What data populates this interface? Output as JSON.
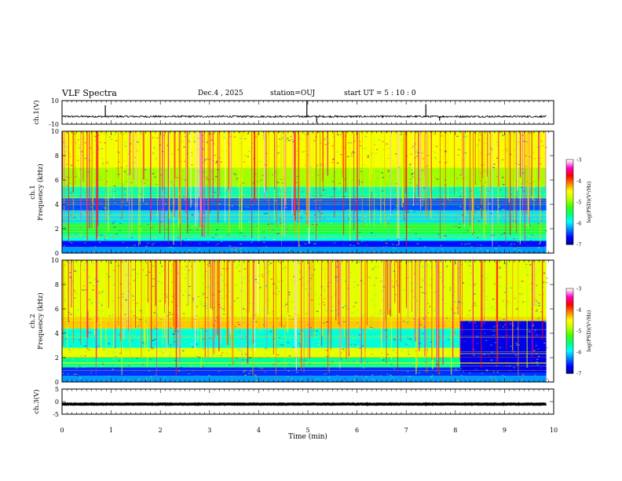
{
  "header": {
    "title": "VLF Spectra",
    "date": "Dec.4 , 2025",
    "station": "station=OUJ",
    "start": "start UT =  5 : 10 : 0"
  },
  "colorbar": {
    "label": "log(PSD)(V²/Hz)",
    "ticks": [
      "-3",
      "-4",
      "-5",
      "-6",
      "-7"
    ],
    "colors": [
      "#000080",
      "#0000ff",
      "#0080ff",
      "#00ffff",
      "#00ff80",
      "#40ff00",
      "#c0ff00",
      "#ffff00",
      "#ff8000",
      "#ff0000",
      "#ff00c0",
      "#ffffff"
    ]
  },
  "chart_data": [
    {
      "type": "line",
      "panel": "waveform",
      "ylabel": "ch.1(V)",
      "ylim": [
        -10,
        10
      ],
      "yticks": [
        "10",
        "-10"
      ],
      "baseline": -3.5,
      "noise_amplitude": 0.8,
      "spikes": [
        {
          "x": 0.88,
          "y": 6
        },
        {
          "x": 4.98,
          "y": 10
        },
        {
          "x": 5.18,
          "y": -9
        },
        {
          "x": 7.4,
          "y": 7
        },
        {
          "x": 7.68,
          "y": -7
        }
      ]
    },
    {
      "type": "heatmap",
      "panel": "spectrogram",
      "ylabel": "ch.1 Frequency (kHz)",
      "ylim": [
        0,
        10
      ],
      "yticks": [
        "10",
        "8",
        "6",
        "4",
        "2",
        "0"
      ],
      "xlim": [
        0,
        9.85
      ],
      "zlim": [
        -7,
        -3
      ],
      "bands": [
        {
          "f_low": 0.5,
          "f_high": 1.0,
          "level": -6.6
        },
        {
          "f_low": 1.0,
          "f_high": 1.5,
          "level": -5.8
        },
        {
          "f_low": 1.5,
          "f_high": 2.5,
          "level": -5.4
        },
        {
          "f_low": 2.5,
          "f_high": 3.5,
          "level": -6.0
        },
        {
          "f_low": 3.5,
          "f_high": 4.5,
          "level": -6.4
        },
        {
          "f_low": 4.5,
          "f_high": 5.5,
          "level": -5.7
        },
        {
          "f_low": 5.5,
          "f_high": 7.0,
          "level": -4.9
        },
        {
          "f_low": 7.0,
          "f_high": 10.0,
          "level": -4.5
        }
      ],
      "spheric_density": 1.0
    },
    {
      "type": "heatmap",
      "panel": "spectrogram",
      "ylabel": "ch.2 Frequency (kHz)",
      "ylim": [
        0,
        10
      ],
      "yticks": [
        "10",
        "8",
        "6",
        "4",
        "2",
        "0"
      ],
      "xlim": [
        0,
        9.85
      ],
      "zlim": [
        -7,
        -3
      ],
      "bands": [
        {
          "f_low": 0.5,
          "f_high": 1.2,
          "level": -6.5
        },
        {
          "f_low": 1.2,
          "f_high": 2.0,
          "level": -5.6
        },
        {
          "f_low": 2.0,
          "f_high": 2.8,
          "level": -4.6
        },
        {
          "f_low": 2.8,
          "f_high": 4.4,
          "level": -5.8
        },
        {
          "f_low": 4.4,
          "f_high": 5.2,
          "level": -4.3
        },
        {
          "f_low": 5.2,
          "f_high": 10.0,
          "level": -4.6
        }
      ],
      "quiet_after_x": 8.1,
      "spheric_density": 1.0
    },
    {
      "type": "line",
      "panel": "waveform",
      "ylabel": "ch.3(V)",
      "ylim": [
        -5,
        5
      ],
      "yticks": [
        "5",
        "0",
        "-5"
      ],
      "baseline": -1.0,
      "noise_amplitude": 0.1
    }
  ],
  "xaxis": {
    "label": "Time (min)",
    "ticks": [
      "0",
      "1",
      "2",
      "3",
      "4",
      "5",
      "6",
      "7",
      "8",
      "9",
      "10"
    ],
    "xlim": [
      0,
      10
    ]
  }
}
